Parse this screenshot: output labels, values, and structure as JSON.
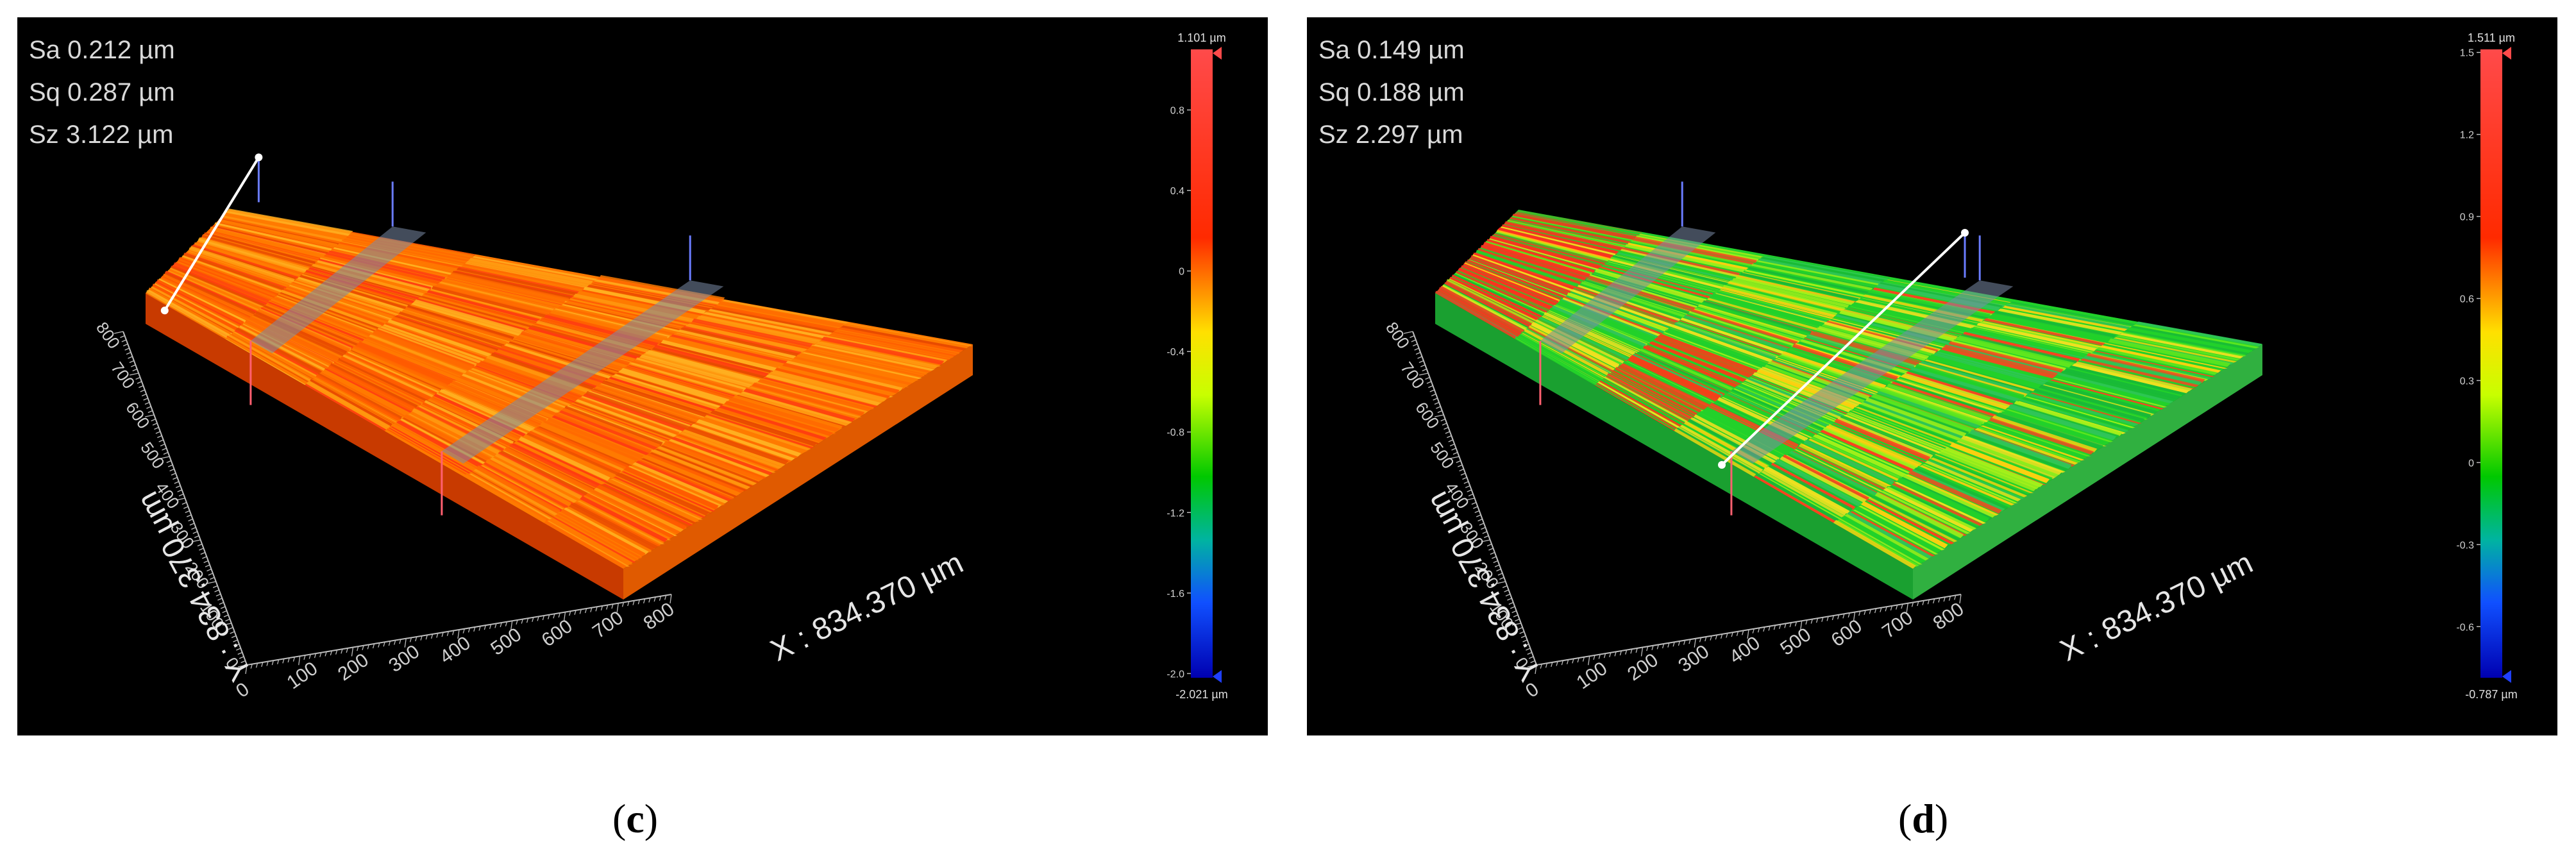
{
  "panels": [
    {
      "id": "c",
      "caption_open": "(",
      "caption_letter": "c",
      "caption_close": ")",
      "stats": [
        {
          "label": "Sa",
          "value": "0.212 µm"
        },
        {
          "label": "Sq",
          "value": "0.287 µm"
        },
        {
          "label": "Sz",
          "value": "3.122 µm"
        }
      ],
      "axis_x_label": "X : 834.370 µm",
      "axis_y_label": "Y : 834.370 µm",
      "axis_x_ticks": [
        "0",
        "100",
        "200",
        "300",
        "400",
        "500",
        "600",
        "700",
        "800"
      ],
      "axis_y_ticks": [
        "0",
        "100",
        "200",
        "300",
        "400",
        "500",
        "600",
        "700",
        "800"
      ],
      "scale_max": "1.101 µm",
      "scale_min": "-2.021 µm",
      "scale_ticks": [
        "0.8",
        "0.4",
        "0",
        "-0.4",
        "-0.8",
        "-1.2",
        "-1.6",
        "-2.0"
      ],
      "scale_range": [
        -2.021,
        1.101
      ],
      "surface_tone": "orange"
    },
    {
      "id": "d",
      "caption_open": "(",
      "caption_letter": "d",
      "caption_close": ")",
      "stats": [
        {
          "label": "Sa",
          "value": "0.149 µm"
        },
        {
          "label": "Sq",
          "value": "0.188 µm"
        },
        {
          "label": "Sz",
          "value": "2.297 µm"
        }
      ],
      "axis_x_label": "X : 834.370 µm",
      "axis_y_label": "Y : 834.370 µm",
      "axis_x_ticks": [
        "0",
        "100",
        "200",
        "300",
        "400",
        "500",
        "600",
        "700",
        "800"
      ],
      "axis_y_ticks": [
        "0",
        "100",
        "200",
        "300",
        "400",
        "500",
        "600",
        "700",
        "800"
      ],
      "scale_max": "1.511 µm",
      "scale_min": "-0.787 µm",
      "scale_ticks": [
        "1.5",
        "1.2",
        "0.9",
        "0.6",
        "0.3",
        "0",
        "-0.3",
        "-0.6"
      ],
      "scale_range": [
        -0.787,
        1.511
      ],
      "surface_tone": "green"
    }
  ],
  "colors": {
    "background": "#000000",
    "scale_top": "#ff3b3b",
    "scale_bottom": "#0000cc",
    "profile_line": "#ffffff",
    "cut_plane": "#7a8aa6"
  }
}
